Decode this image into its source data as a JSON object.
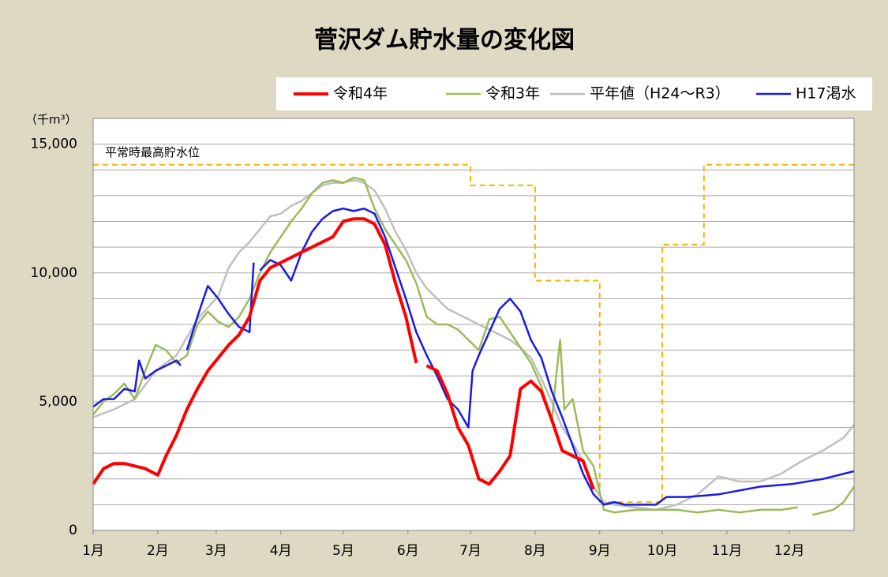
{
  "chart_data": {
    "type": "line",
    "title": "菅沢ダム貯水量の変化図",
    "y_unit": "（千m³）",
    "legend": "top-right",
    "xlim": [
      0,
      365
    ],
    "xticks": [
      {
        "value": 0,
        "label": "1月"
      },
      {
        "value": 31,
        "label": "2月"
      },
      {
        "value": 59,
        "label": "3月"
      },
      {
        "value": 90,
        "label": "4月"
      },
      {
        "value": 120,
        "label": "5月"
      },
      {
        "value": 151,
        "label": "6月"
      },
      {
        "value": 181,
        "label": "7月"
      },
      {
        "value": 212,
        "label": "8月"
      },
      {
        "value": 243,
        "label": "9月"
      },
      {
        "value": 273,
        "label": "10月"
      },
      {
        "value": 304,
        "label": "11月"
      },
      {
        "value": 334,
        "label": "12月"
      }
    ],
    "ylim": [
      0,
      16000
    ],
    "yticks": [
      0,
      {
        "value": 5000,
        "label": "5,000"
      },
      {
        "value": 10000,
        "label": "10,000"
      },
      {
        "value": 15000,
        "label": "15,000"
      }
    ],
    "y_minor_ticks": [
      1000,
      2000,
      3000,
      4000,
      6000,
      7000,
      8000,
      9000,
      11000,
      12000,
      13000,
      14000,
      16000
    ],
    "grid": true,
    "reference": {
      "label": "平常時最高貯水位",
      "color": "#f5b400",
      "x": [
        0,
        181,
        181,
        212,
        212,
        243,
        243,
        273,
        273,
        293,
        293,
        365
      ],
      "values": [
        14200,
        14200,
        13400,
        13400,
        9700,
        9700,
        1100,
        1100,
        11100,
        11100,
        14200,
        14200
      ]
    },
    "series": [
      {
        "name": "平年値（H24～R3）",
        "color": "#bfbfbf",
        "x": [
          0,
          10,
          20,
          30,
          40,
          50,
          60,
          65,
          70,
          75,
          80,
          85,
          90,
          95,
          100,
          105,
          110,
          115,
          120,
          125,
          130,
          135,
          140,
          145,
          150,
          155,
          160,
          165,
          170,
          175,
          180,
          185,
          190,
          195,
          200,
          205,
          210,
          215,
          220,
          225,
          230,
          235,
          240,
          245,
          250,
          260,
          270,
          280,
          290,
          300,
          310,
          320,
          330,
          340,
          350,
          360,
          365
        ],
        "values": [
          4400,
          4700,
          5100,
          6200,
          6800,
          8200,
          9100,
          10200,
          10800,
          11200,
          11700,
          12200,
          12300,
          12600,
          12800,
          13100,
          13400,
          13500,
          13500,
          13600,
          13500,
          13200,
          12500,
          11600,
          10900,
          10000,
          9400,
          9000,
          8600,
          8400,
          8200,
          8000,
          7800,
          7600,
          7400,
          7100,
          6700,
          5900,
          5000,
          4000,
          3400,
          2700,
          1700,
          1100,
          1000,
          900,
          800,
          1000,
          1400,
          2100,
          1900,
          1900,
          2200,
          2700,
          3100,
          3600,
          4100
        ]
      },
      {
        "name": "令和3年",
        "color": "#9bbb59",
        "x": [
          0,
          5,
          10,
          15,
          20,
          25,
          30,
          35,
          40,
          45,
          50,
          55,
          60,
          65,
          70,
          75,
          80,
          85,
          90,
          95,
          100,
          105,
          110,
          115,
          120,
          125,
          130,
          135,
          140,
          145,
          150,
          155,
          160,
          165,
          170,
          175,
          180,
          185,
          190,
          195,
          200,
          205,
          210,
          215,
          220,
          222,
          224,
          226,
          230,
          235,
          240,
          245,
          250,
          260,
          270,
          280,
          290,
          300,
          310,
          320,
          330,
          338,
          341,
          345,
          350,
          355,
          360,
          365
        ],
        "values": [
          4500,
          5000,
          5300,
          5700,
          5100,
          6200,
          7200,
          7000,
          6500,
          6800,
          8000,
          8500,
          8100,
          7900,
          8300,
          9000,
          10000,
          10800,
          11400,
          12000,
          12500,
          13100,
          13500,
          13600,
          13500,
          13700,
          13600,
          12500,
          11700,
          11100,
          10500,
          9600,
          8300,
          8000,
          8000,
          7800,
          7400,
          7000,
          8200,
          8300,
          7700,
          7100,
          6500,
          5600,
          4200,
          5900,
          7400,
          4700,
          5100,
          3100,
          2500,
          800,
          700,
          800,
          800,
          800,
          700,
          800,
          700,
          800,
          800,
          900,
          null,
          600,
          700,
          800,
          1100,
          1700
        ]
      },
      {
        "name": "H17渇水",
        "color": "#1a1ae6",
        "x": [
          0,
          5,
          10,
          15,
          20,
          22,
          25,
          30,
          35,
          40,
          42,
          43,
          45,
          50,
          55,
          60,
          65,
          70,
          75,
          77,
          78,
          80,
          85,
          90,
          95,
          100,
          105,
          110,
          115,
          120,
          125,
          130,
          135,
          140,
          145,
          150,
          155,
          160,
          165,
          170,
          175,
          180,
          182,
          185,
          190,
          195,
          200,
          205,
          210,
          215,
          220,
          225,
          230,
          235,
          240,
          245,
          250,
          255,
          260,
          265,
          270,
          275,
          285,
          300,
          320,
          335,
          350,
          365
        ],
        "values": [
          4800,
          5100,
          5100,
          5500,
          5400,
          6600,
          5900,
          6200,
          6400,
          6600,
          6400,
          null,
          7000,
          8300,
          9500,
          9000,
          8400,
          7900,
          7700,
          10400,
          null,
          10100,
          10500,
          10300,
          9700,
          10800,
          11600,
          12100,
          12400,
          12500,
          12400,
          12500,
          12300,
          11400,
          10200,
          9000,
          7700,
          6800,
          6000,
          5100,
          4700,
          4000,
          6200,
          6800,
          7700,
          8600,
          9000,
          8500,
          7400,
          6700,
          5400,
          4400,
          3300,
          2200,
          1400,
          1000,
          1100,
          1000,
          1000,
          1000,
          1000,
          1300,
          1300,
          1400,
          1700,
          1800,
          2000,
          2300
        ]
      },
      {
        "name": "令和4年",
        "color": "#ff0000",
        "x": [
          0,
          5,
          10,
          15,
          20,
          25,
          31,
          35,
          40,
          45,
          50,
          55,
          60,
          65,
          70,
          75,
          80,
          85,
          90,
          95,
          100,
          105,
          110,
          115,
          120,
          125,
          130,
          135,
          140,
          145,
          150,
          155,
          157,
          160,
          165,
          170,
          175,
          180,
          185,
          190,
          195,
          200,
          205,
          210,
          215,
          220,
          225,
          230,
          235,
          240
        ],
        "values": [
          1800,
          2400,
          2600,
          2600,
          2500,
          2400,
          2150,
          2900,
          3700,
          4700,
          5500,
          6200,
          6700,
          7200,
          7600,
          8300,
          9700,
          10200,
          10400,
          10600,
          10800,
          11000,
          11200,
          11400,
          12000,
          12100,
          12100,
          11900,
          11100,
          9600,
          8300,
          6500,
          null,
          6400,
          6200,
          5300,
          4000,
          3300,
          2000,
          1800,
          2300,
          2900,
          5500,
          5800,
          5400,
          4300,
          3100,
          2900,
          2700,
          1600
        ]
      }
    ]
  }
}
